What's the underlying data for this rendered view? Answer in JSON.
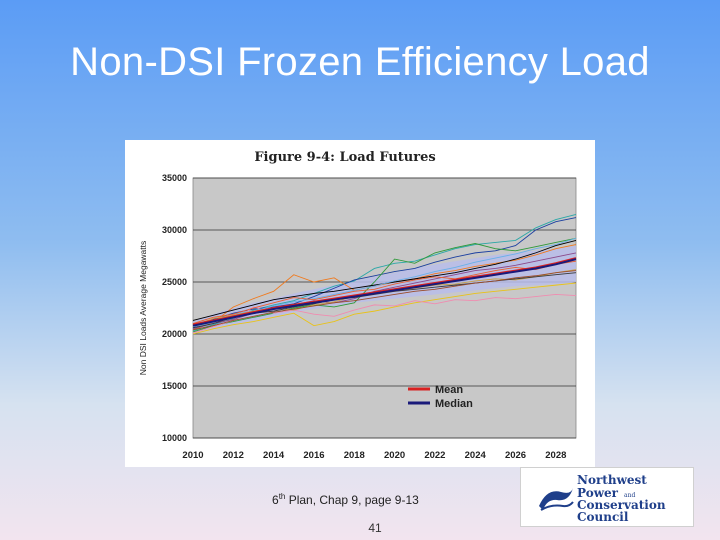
{
  "slide": {
    "title": "Non-DSI Frozen Efficiency Load",
    "caption_prefix": "6",
    "caption_sup": "th",
    "caption_rest": " Plan, Chap 9, page 9-13",
    "page_number": "41"
  },
  "logo": {
    "line1": "Northwest",
    "line2": "Power",
    "line2_small": "and",
    "line3": "Conservation",
    "line4": "Council"
  },
  "chart_data": {
    "type": "line",
    "title": "Figure 9-4:  Load Futures",
    "xlabel": "",
    "ylabel": "Non DSI Loads Average Megawatts",
    "xlim": [
      2010,
      2029
    ],
    "ylim": [
      10000,
      35000
    ],
    "x_ticks": [
      "2010",
      "2012",
      "2014",
      "2016",
      "2018",
      "2020",
      "2022",
      "2024",
      "2026",
      "2028"
    ],
    "y_ticks": [
      "10000",
      "15000",
      "20000",
      "25000",
      "30000",
      "35000"
    ],
    "grid": "horizontal",
    "legend_placement": "lower-right",
    "years": [
      2010,
      2011,
      2012,
      2013,
      2014,
      2015,
      2016,
      2017,
      2018,
      2019,
      2020,
      2021,
      2022,
      2023,
      2024,
      2025,
      2026,
      2027,
      2028,
      2029
    ],
    "band": {
      "upper": [
        21200,
        21900,
        22500,
        23000,
        23400,
        23900,
        24300,
        24700,
        25100,
        25500,
        25900,
        26300,
        26700,
        27000,
        27300,
        27600,
        27800,
        28000,
        28200,
        28500
      ],
      "lower": [
        20100,
        20500,
        20900,
        21300,
        21700,
        22100,
        22400,
        22700,
        23000,
        23200,
        23400,
        23600,
        23800,
        24000,
        24200,
        24400,
        24600,
        24700,
        24800,
        25000
      ],
      "color": "#b9bdea"
    },
    "series": [
      {
        "name": "Mean",
        "color": "#d92121",
        "values": [
          20900,
          21300,
          21700,
          22100,
          22500,
          22800,
          23100,
          23400,
          23700,
          24000,
          24300,
          24600,
          24900,
          25200,
          25500,
          25800,
          26100,
          26400,
          26800,
          27300
        ]
      },
      {
        "name": "Median",
        "color": "#1a1a7a",
        "values": [
          20800,
          21200,
          21600,
          22000,
          22400,
          22700,
          23000,
          23300,
          23600,
          23900,
          24200,
          24500,
          24800,
          25100,
          25400,
          25700,
          26000,
          26300,
          26700,
          27200
        ]
      },
      {
        "name": "",
        "color": "#2aa7a7",
        "values": [
          20300,
          20900,
          21500,
          22300,
          22800,
          23200,
          23900,
          24600,
          25100,
          26300,
          26800,
          27000,
          27600,
          28200,
          28600,
          28800,
          29000,
          30200,
          31000,
          31500
        ]
      },
      {
        "name": "",
        "color": "#1b3fa0",
        "values": [
          20600,
          21400,
          22000,
          22400,
          22600,
          22900,
          23600,
          24400,
          25200,
          25600,
          26000,
          26300,
          26900,
          27400,
          27800,
          28000,
          28500,
          30000,
          30800,
          31200
        ]
      },
      {
        "name": "",
        "color": "#f07a1e",
        "values": [
          20400,
          21100,
          22600,
          23400,
          24100,
          25700,
          25000,
          25400,
          24200,
          24600,
          25000,
          25300,
          25800,
          26100,
          26500,
          26800,
          27100,
          27600,
          28200,
          28600
        ]
      },
      {
        "name": "",
        "color": "#2f9a3a",
        "values": [
          20200,
          20800,
          21200,
          21600,
          22000,
          22500,
          22800,
          22600,
          23000,
          25000,
          27200,
          26800,
          27800,
          28300,
          28700,
          28200,
          28000,
          28400,
          28800,
          29200
        ]
      },
      {
        "name": "",
        "color": "#000000",
        "values": [
          21300,
          21800,
          22300,
          22800,
          23300,
          23600,
          23900,
          24100,
          24400,
          24700,
          25000,
          25300,
          25600,
          25900,
          26300,
          26700,
          27200,
          27800,
          28500,
          29000
        ]
      },
      {
        "name": "",
        "color": "#e8c21a",
        "values": [
          20000,
          20500,
          20900,
          21200,
          21600,
          22000,
          20800,
          21200,
          21900,
          22200,
          22600,
          23000,
          23300,
          23600,
          23900,
          24100,
          24300,
          24500,
          24700,
          24900
        ]
      },
      {
        "name": "",
        "color": "#f08cb0",
        "values": [
          20100,
          20700,
          21300,
          22600,
          22000,
          22300,
          21900,
          21700,
          22300,
          22800,
          22700,
          23200,
          22900,
          23300,
          23200,
          23500,
          23400,
          23600,
          23800,
          23700
        ]
      },
      {
        "name": "",
        "color": "#8b4a8b",
        "values": [
          20500,
          21000,
          21400,
          22000,
          22400,
          22800,
          23200,
          23000,
          23400,
          24100,
          24500,
          24900,
          25300,
          25700,
          26100,
          26300,
          26600,
          27000,
          27400,
          27800
        ]
      },
      {
        "name": "",
        "color": "#6ab0e8",
        "values": [
          20700,
          21100,
          21900,
          22200,
          22700,
          23100,
          23400,
          23800,
          24200,
          24600,
          25100,
          25500,
          26000,
          26400,
          26900,
          27300,
          27700,
          28200,
          28600,
          29200
        ]
      },
      {
        "name": "",
        "color": "#c8a24a",
        "values": [
          20800,
          21500,
          21800,
          22200,
          22500,
          22300,
          22800,
          23100,
          23600,
          23900,
          24100,
          24400,
          24700,
          24800,
          25100,
          25300,
          25200,
          25500,
          25900,
          26200
        ]
      },
      {
        "name": "",
        "color": "#e86030",
        "values": [
          21000,
          21600,
          21900,
          22500,
          23000,
          23500,
          23300,
          23700,
          24100,
          24300,
          24800,
          25200,
          25500,
          25300,
          25700,
          26100,
          26400,
          26200,
          26700,
          27000
        ]
      },
      {
        "name": "",
        "color": "#3a3a3a",
        "values": [
          20600,
          21000,
          21600,
          22000,
          22200,
          22600,
          22900,
          23300,
          23500,
          23800,
          24100,
          24300,
          24500,
          24700,
          24900,
          25100,
          25300,
          25500,
          25700,
          25900
        ]
      },
      {
        "name": "",
        "color": "#9a4c2a",
        "values": [
          20400,
          20800,
          21300,
          21700,
          22100,
          22400,
          22700,
          23000,
          23200,
          23500,
          23800,
          24100,
          24300,
          24600,
          24900,
          25100,
          25400,
          25600,
          25900,
          26100
        ]
      }
    ]
  }
}
